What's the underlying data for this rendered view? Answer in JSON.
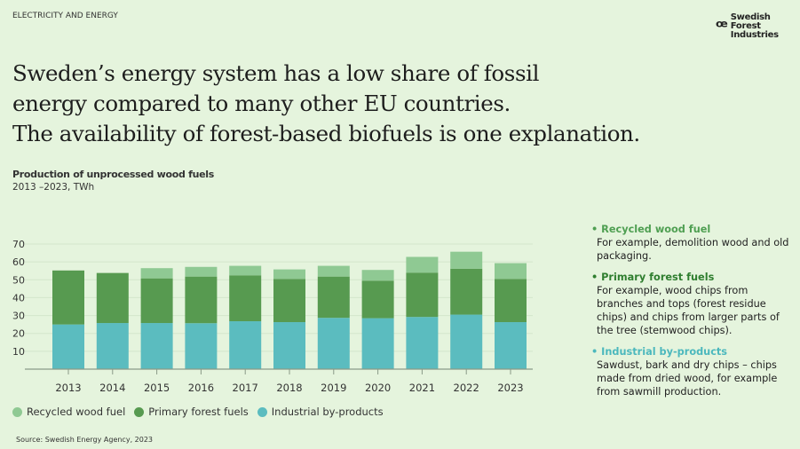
{
  "section_label": "ELECTRICITY AND ENERGY",
  "logo": {
    "text": "Swedish Forest Industries"
  },
  "headline": [
    "Sweden’s energy system has a low share of fossil",
    "energy compared to many other EU countries.",
    "The availability of forest-based biofuels is one explanation."
  ],
  "source": "Source: Swedish Energy Agency, 2023",
  "colors": {
    "background": "#e5f4dd",
    "industrial": "#5bbcbf",
    "primary": "#579a50",
    "recycled": "#8fc993"
  },
  "notes": [
    {
      "title": "• Recycled wood fuel",
      "text": "For example, demolition wood and old packaging.",
      "color": "#4f9f52"
    },
    {
      "title": "• Primary forest fuels",
      "text": "For example, wood chips from branches and tops (forest residue chips) and chips from larger parts of the tree (stemwood chips).",
      "color": "#2f7e2f"
    },
    {
      "title": "• Industrial by-products",
      "text": "Sawdust, bark and dry chips – chips made from dried wood, for example from sawmill production.",
      "color": "#4bb8bd"
    }
  ],
  "chart_data": {
    "type": "bar",
    "stacked": true,
    "title": "Production of unprocessed wood fuels",
    "subtitle": "2013 –2023, TWh",
    "categories": [
      "2013",
      "2014",
      "2015",
      "2016",
      "2017",
      "2018",
      "2019",
      "2020",
      "2021",
      "2022",
      "2023"
    ],
    "yticks": [
      "10",
      "20",
      "30",
      "40",
      "50",
      "60",
      "70"
    ],
    "ylim": [
      0,
      70
    ],
    "grid": true,
    "legend": "bottom",
    "series": [
      {
        "name": "Industrial by-products",
        "color": "#5bbcbf",
        "values": [
          25,
          25.8,
          25.8,
          25.7,
          26.8,
          26.3,
          28.7,
          28.5,
          29.2,
          30.5,
          26.3
        ]
      },
      {
        "name": "Primary forest fuels",
        "color": "#579a50",
        "values": [
          30.2,
          28,
          25,
          26.1,
          25.7,
          24.2,
          23.1,
          21,
          24.8,
          25.7,
          24.2
        ]
      },
      {
        "name": "Recycled wood fuel",
        "color": "#8fc993",
        "values": [
          0,
          0,
          5.7,
          5.4,
          5.3,
          5.3,
          6,
          6,
          8.8,
          9.5,
          8.8
        ]
      }
    ],
    "legend_order": [
      2,
      1,
      0
    ]
  }
}
